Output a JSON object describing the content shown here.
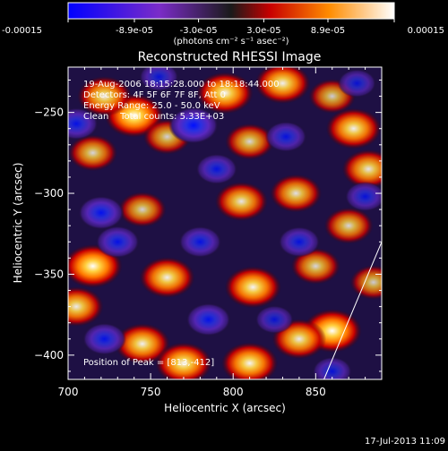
{
  "colorbar": {
    "tick_labels": [
      "-0.00015",
      "-8.9e-05",
      "-3.0e-05",
      "3.0e-05",
      "8.9e-05",
      "0.00015"
    ],
    "tick_values": [
      -0.00015,
      -8.9e-05,
      -3e-05,
      3e-05,
      8.9e-05,
      0.00015
    ],
    "range": [
      -0.00015,
      0.00015
    ],
    "unit_label": "(photons cm⁻² s⁻¹ asec⁻²)",
    "colors": [
      "#0000ff",
      "#7b2cc8",
      "#1a1a1a",
      "#c80000",
      "#ff8c00",
      "#ffffff"
    ]
  },
  "chart_data": {
    "type": "heatmap",
    "title": "Reconstructed RHESSI Image",
    "xlabel": "Heliocentric X (arcsec)",
    "ylabel": "Heliocentric Y (arcsec)",
    "xlim": [
      700,
      890
    ],
    "ylim": [
      -415,
      -222
    ],
    "x_ticks": [
      700,
      750,
      800,
      850
    ],
    "y_ticks": [
      -250,
      -300,
      -350,
      -400
    ],
    "x_tick_labels": [
      "700",
      "750",
      "800",
      "850"
    ],
    "y_tick_labels": [
      "−250",
      "−300",
      "−350",
      "−400"
    ],
    "annotations": [
      "19-Aug-2006 18:15:28.000 to 18:18:44.000",
      "Detectors: 4F 5F 6F 7F 8F, Att 0",
      "Energy Range: 25.0 - 50.0 keV",
      "Clean    Total counts: 5.33E+03"
    ],
    "peak_label": "Position of Peak = [813,-412]",
    "peak_position": [
      813,
      -412
    ],
    "limb_line": [
      [
        855,
        -415
      ],
      [
        890,
        -330
      ]
    ],
    "blobs": [
      {
        "x": 740,
        "y": -252,
        "v": 1.0
      },
      {
        "x": 722,
        "y": -240,
        "v": 0.8
      },
      {
        "x": 795,
        "y": -238,
        "v": 0.9
      },
      {
        "x": 830,
        "y": -232,
        "v": 0.85
      },
      {
        "x": 873,
        "y": -260,
        "v": 0.85
      },
      {
        "x": 882,
        "y": -285,
        "v": 0.75
      },
      {
        "x": 715,
        "y": -275,
        "v": 0.6
      },
      {
        "x": 838,
        "y": -300,
        "v": 0.7
      },
      {
        "x": 805,
        "y": -305,
        "v": 0.75
      },
      {
        "x": 870,
        "y": -320,
        "v": 0.6
      },
      {
        "x": 715,
        "y": -345,
        "v": 1.0
      },
      {
        "x": 705,
        "y": -370,
        "v": 0.8
      },
      {
        "x": 760,
        "y": -352,
        "v": 0.85
      },
      {
        "x": 812,
        "y": -358,
        "v": 0.9
      },
      {
        "x": 850,
        "y": -345,
        "v": 0.6
      },
      {
        "x": 745,
        "y": -393,
        "v": 0.85
      },
      {
        "x": 770,
        "y": -405,
        "v": 0.9
      },
      {
        "x": 810,
        "y": -405,
        "v": 0.9
      },
      {
        "x": 860,
        "y": -385,
        "v": 1.0
      },
      {
        "x": 840,
        "y": -390,
        "v": 0.8
      },
      {
        "x": 885,
        "y": -355,
        "v": 0.5
      },
      {
        "x": 760,
        "y": -265,
        "v": 0.55
      },
      {
        "x": 810,
        "y": -268,
        "v": 0.6
      },
      {
        "x": 745,
        "y": -310,
        "v": 0.55
      },
      {
        "x": 860,
        "y": -240,
        "v": 0.5
      },
      {
        "x": 776,
        "y": -258,
        "v": -1.0
      },
      {
        "x": 720,
        "y": -312,
        "v": -0.8
      },
      {
        "x": 790,
        "y": -285,
        "v": -0.6
      },
      {
        "x": 730,
        "y": -330,
        "v": -0.7
      },
      {
        "x": 780,
        "y": -330,
        "v": -0.65
      },
      {
        "x": 832,
        "y": -265,
        "v": -0.6
      },
      {
        "x": 705,
        "y": -257,
        "v": -0.7
      },
      {
        "x": 722,
        "y": -390,
        "v": -0.7
      },
      {
        "x": 785,
        "y": -378,
        "v": -0.75
      },
      {
        "x": 840,
        "y": -330,
        "v": -0.6
      },
      {
        "x": 880,
        "y": -302,
        "v": -0.55
      },
      {
        "x": 860,
        "y": -410,
        "v": -0.5
      },
      {
        "x": 825,
        "y": -378,
        "v": -0.45
      },
      {
        "x": 755,
        "y": -228,
        "v": -0.5
      },
      {
        "x": 875,
        "y": -232,
        "v": -0.45
      }
    ]
  },
  "footer": {
    "timestamp": "17-Jul-2013 11:09"
  }
}
